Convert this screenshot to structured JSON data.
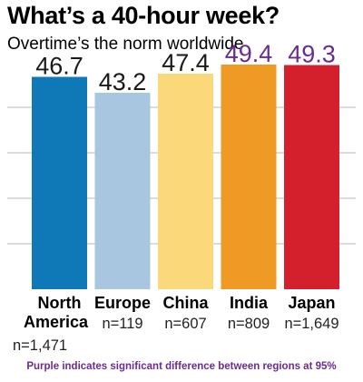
{
  "title": "What’s a 40-hour week?",
  "subtitle": "Overtime’s the norm worldwide",
  "footnote": "Purple indicates significant difference between regions at 95%",
  "colors": {
    "significant_label": "#6b2c91",
    "normal_label": "#1a1a1a",
    "gridline": "#b8b8b8",
    "footnote": "#6b2c91"
  },
  "chart_data": {
    "type": "bar",
    "title": "What’s a 40-hour week?",
    "subtitle": "Overtime’s the norm worldwide",
    "categories": [
      {
        "name_lines": [
          "North",
          "America"
        ],
        "n_label": "n=1,471",
        "value": 46.7,
        "value_label": "46.7",
        "color": "#0f79b8",
        "significant": false
      },
      {
        "name_lines": [
          "Europe"
        ],
        "n_label": "n=119",
        "value": 43.2,
        "value_label": "43.2",
        "color": "#a9c6e1",
        "significant": false
      },
      {
        "name_lines": [
          "China"
        ],
        "n_label": "n=607",
        "value": 47.4,
        "value_label": "47.4",
        "color": "#fbd97a",
        "significant": false
      },
      {
        "name_lines": [
          "India"
        ],
        "n_label": "n=809",
        "value": 49.4,
        "value_label": "49.4",
        "color": "#ee9a25",
        "significant": true
      },
      {
        "name_lines": [
          "Japan"
        ],
        "n_label": "n=1,649",
        "value": 49.3,
        "value_label": "49.3",
        "color": "#d4202d",
        "significant": true
      }
    ],
    "ylim": [
      0,
      50
    ],
    "grid": true,
    "xlabel": "",
    "ylabel": ""
  }
}
